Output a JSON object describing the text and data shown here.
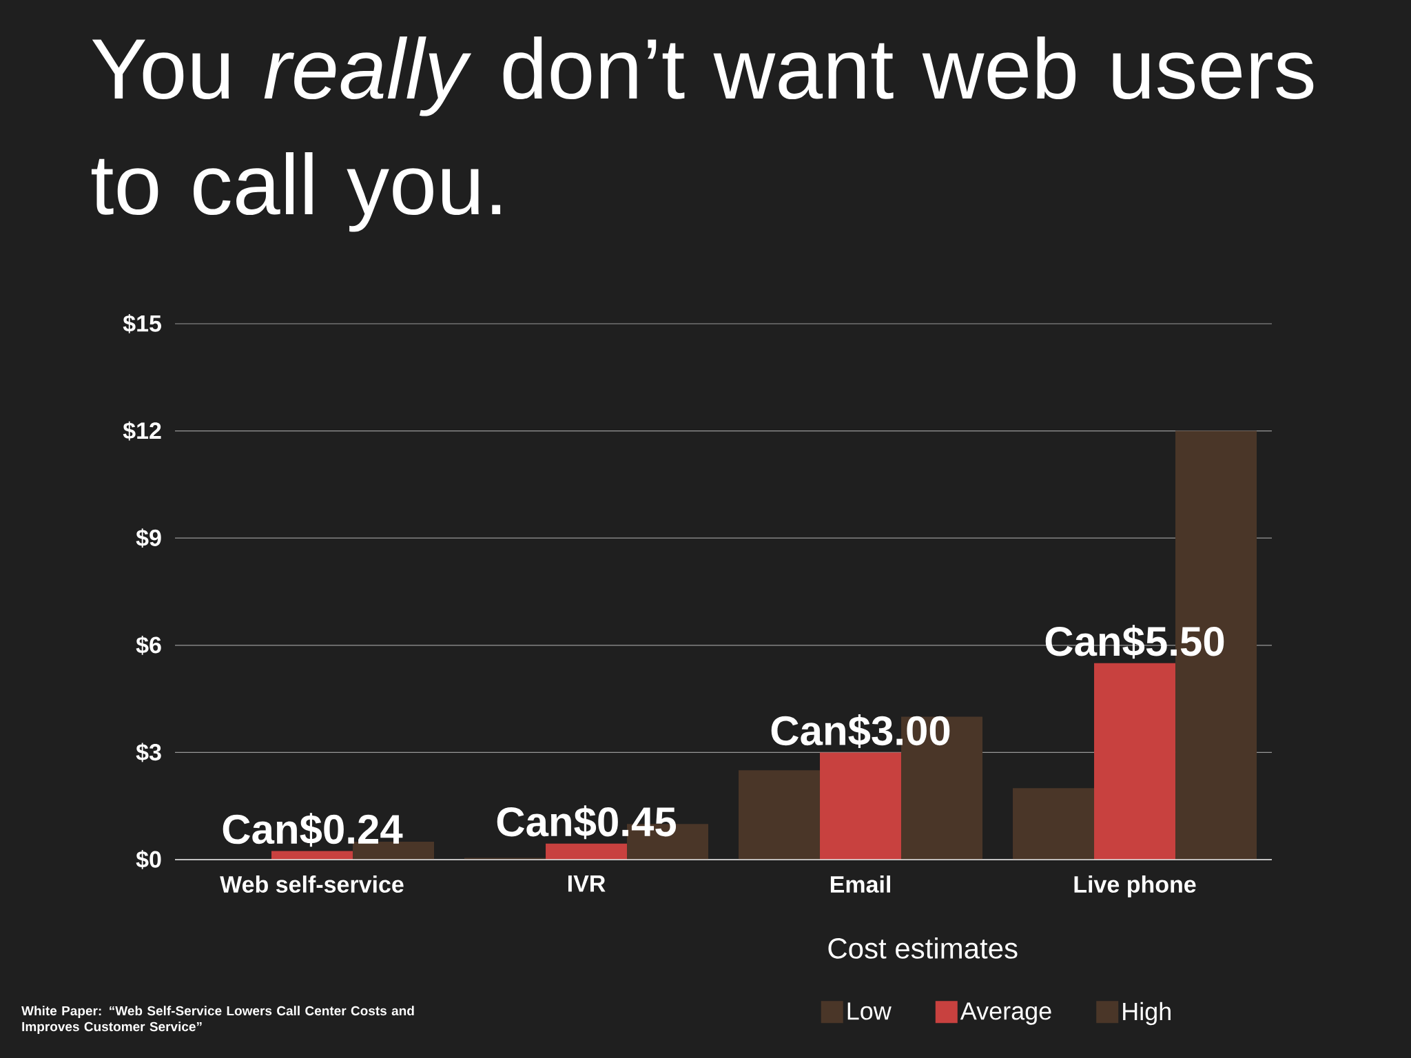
{
  "chart_data": {
    "type": "bar",
    "title": "You *really* don’t want web users to call you.",
    "categories": [
      "Web self-service",
      "IVR",
      "Email",
      "Live phone"
    ],
    "series": [
      {
        "name": "Low",
        "color": "#4a3628",
        "values": [
          0,
          0.05,
          2.5,
          2
        ]
      },
      {
        "name": "Average",
        "color": "#c8413f",
        "values": [
          0.24,
          0.45,
          3,
          5.5
        ],
        "value_labels": [
          "Can$0.24",
          "Can$0.45",
          "Can$3.00",
          "Can$5.50"
        ]
      },
      {
        "name": "High",
        "color": "#4a3628",
        "values": [
          0.5,
          1,
          4,
          12
        ]
      }
    ],
    "ylim": [
      0,
      15
    ],
    "yticks": [
      {
        "value": 0,
        "label": "$0"
      },
      {
        "value": 3,
        "label": "$3"
      },
      {
        "value": 6,
        "label": "$6"
      },
      {
        "value": 9,
        "label": "$9"
      },
      {
        "value": 12,
        "label": "$12"
      },
      {
        "value": 15,
        "label": "$15"
      }
    ],
    "grid": "y",
    "legend": "bottom right",
    "legend_title": "Cost estimates",
    "annotations": [
      "White Paper: “Web Self-Service Lowers Call Center Costs and Improves Customer Service”"
    ]
  }
}
